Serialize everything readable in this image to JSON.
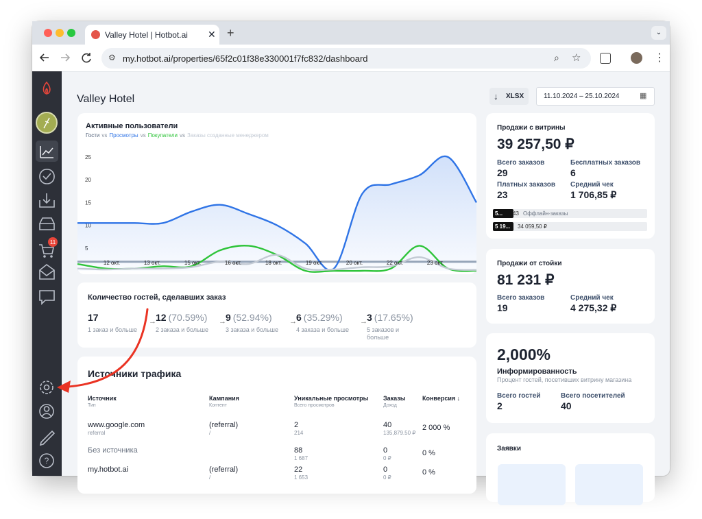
{
  "browser": {
    "tab_title": "Valley Hotel | Hotbot.ai",
    "url": "my.hotbot.ai/properties/65f2c01f38e330001f7fc832/dashboard"
  },
  "sidebar": {
    "cart_badge": "11"
  },
  "header": {
    "title": "Valley Hotel",
    "export": "XLSX",
    "date_range": "11.10.2024 – 25.10.2024"
  },
  "chart_data": {
    "type": "line",
    "title": "Активные пользователи",
    "legend_separator": "vs",
    "x_labels": [
      "12 окт.",
      "13 окт.",
      "15 окт.",
      "16 окт.",
      "18 окт.",
      "19 окт.",
      "20 окт.",
      "22 окт.",
      "23 окт."
    ],
    "ylim": [
      0,
      25
    ],
    "yticks": [
      5,
      10,
      15,
      20,
      25
    ],
    "grid": false,
    "series": [
      {
        "name": "Гости",
        "color": "#9aa6b6",
        "values": [
          2,
          2,
          2,
          2,
          2,
          2,
          2,
          2,
          2,
          2,
          2,
          2,
          2,
          2,
          2
        ]
      },
      {
        "name": "Просмотры",
        "color": "#2f74e6",
        "area": true,
        "values": [
          10.5,
          10.5,
          10.5,
          10.5,
          13,
          14.5,
          12.5,
          10,
          6,
          0.5,
          17,
          19,
          21,
          25,
          15
        ]
      },
      {
        "name": "Покупатели",
        "color": "#2fc43a",
        "values": [
          1.5,
          0.5,
          0.5,
          1,
          1,
          4.5,
          5.5,
          3.5,
          0,
          0,
          0,
          0.5,
          5.5,
          0.5,
          0
        ]
      },
      {
        "name": "Заказы созданные менеджером",
        "color": "#c3cad4",
        "values": [
          0.5,
          0.3,
          0.5,
          0.5,
          0.8,
          2,
          1.5,
          3.5,
          0.5,
          0.3,
          0.8,
          1,
          3,
          0.5,
          0.2
        ]
      }
    ]
  },
  "funnel": {
    "title": "Количество гостей, сделавших заказ",
    "arrow": "→",
    "steps": [
      {
        "count": "17",
        "label": "1 заказ и больше"
      },
      {
        "count": "12",
        "percent": "(70.59%)",
        "label": "2 заказа и больше"
      },
      {
        "count": "9",
        "percent": "(52.94%)",
        "label": "3 заказа и больше"
      },
      {
        "count": "6",
        "percent": "(35.29%)",
        "label": "4 заказа и больше"
      },
      {
        "count": "3",
        "percent": "(17.65%)",
        "label": "5 заказов и больше"
      }
    ]
  },
  "traffic": {
    "title": "Источники трафика",
    "columns": [
      {
        "title": "Источник",
        "sub": "Тип"
      },
      {
        "title": "Кампания",
        "sub": "Контент"
      },
      {
        "title": "Уникальные просмотры",
        "sub": "Всего просмотров"
      },
      {
        "title": "Заказы",
        "sub": "Доход"
      },
      {
        "title": "Конверсия ↓"
      }
    ],
    "rows": [
      {
        "source": "www.google.com",
        "type": "referral",
        "campaign": "(referral)",
        "content": "/",
        "views": "2",
        "views_total": "214",
        "orders": "40",
        "revenue": "135,879.50 ₽",
        "conversion": "2 000 %"
      },
      {
        "source": "Без источника",
        "views": "88",
        "views_total": "1 687",
        "orders": "0",
        "revenue": "0 ₽",
        "conversion": "0 %"
      },
      {
        "source": "my.hotbot.ai",
        "campaign": "(referral)",
        "content": "/",
        "views": "22",
        "views_total": "1 653",
        "orders": "0",
        "revenue": "0 ₽",
        "conversion": "0 %"
      }
    ]
  },
  "showcase": {
    "title": "Продажи с витрины",
    "amount": "39 257,50 ₽",
    "stats": [
      {
        "label": "Всего заказов",
        "value": "29"
      },
      {
        "label": "Бесплатных заказов",
        "value": "6"
      },
      {
        "label": "Платных заказов",
        "value": "23"
      },
      {
        "label": "Средний чек",
        "value": "1 706,85 ₽"
      }
    ],
    "bars": [
      {
        "badge": "5...",
        "value": "43",
        "label": "Оффлайн-заказы"
      },
      {
        "badge": "5 19...",
        "value": "34 059,50 ₽"
      }
    ]
  },
  "counter": {
    "title": "Продажи от стойки",
    "amount": "81 231 ₽",
    "stats": [
      {
        "label": "Всего заказов",
        "value": "19"
      },
      {
        "label": "Средний чек",
        "value": "4 275,32 ₽"
      }
    ]
  },
  "awareness": {
    "value": "2,000%",
    "title": "Информированность",
    "subtitle": "Процент гостей, посетивших витрину магазина",
    "stats": [
      {
        "label": "Всего гостей",
        "value": "2"
      },
      {
        "label": "Всего посетителей",
        "value": "40"
      }
    ]
  },
  "requests": {
    "title": "Заявки"
  }
}
